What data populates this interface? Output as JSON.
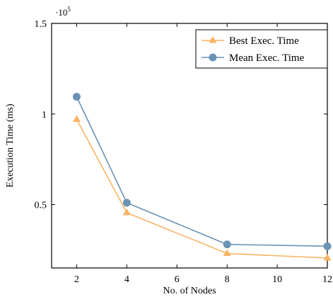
{
  "chart_data": {
    "type": "line",
    "xlabel": "No. of Nodes",
    "ylabel": "Execution Time (ms)",
    "y_scale_multiplier": "·10",
    "y_scale_exponent": "5",
    "xlim": [
      1,
      12
    ],
    "ylim": [
      0.15,
      1.5
    ],
    "x_ticks": [
      2,
      4,
      6,
      8,
      10,
      12
    ],
    "y_ticks": [
      0.5,
      1,
      1.5
    ],
    "y_tick_labels": [
      "0.5",
      "1",
      "1.5"
    ],
    "x": [
      2,
      4,
      8,
      12
    ],
    "series": [
      {
        "name": "Best Exec. Time",
        "values": [
          0.97,
          0.455,
          0.23,
          0.205
        ],
        "color": "#f9b462",
        "marker": "triangle"
      },
      {
        "name": "Mean Exec. Time",
        "values": [
          1.095,
          0.51,
          0.28,
          0.27
        ],
        "color": "#6a93b5",
        "marker": "circle"
      }
    ],
    "legend_position": "top-right",
    "grid": false
  }
}
